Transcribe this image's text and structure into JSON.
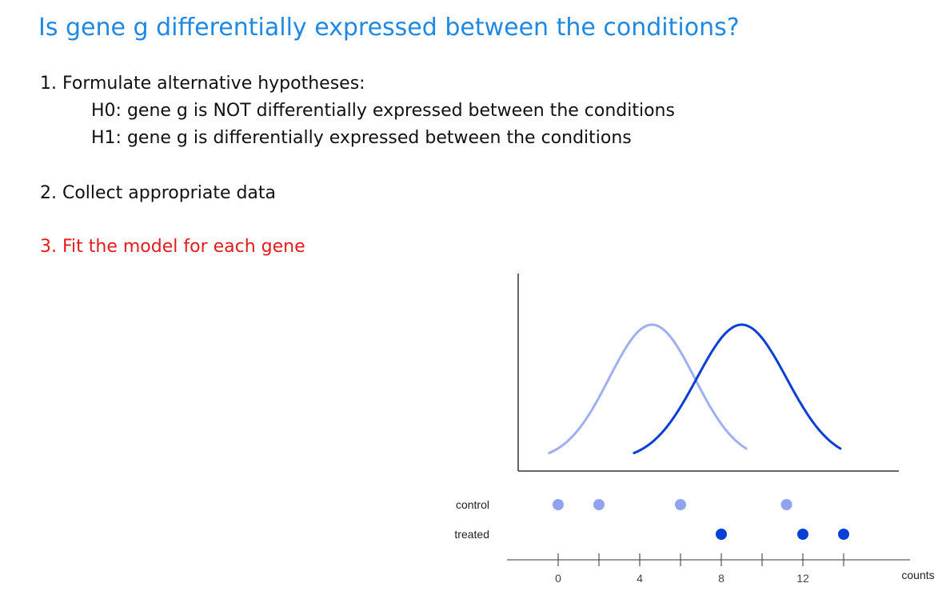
{
  "slide": {
    "title": "Is gene g differentially expressed between the conditions?",
    "step1": "1. Formulate alternative hypotheses:",
    "h0": "H0: gene g is NOT differentially expressed between the conditions",
    "h1": "H1: gene g is differentially expressed between the conditions",
    "step2": "2. Collect appropriate data",
    "step3": "3. Fit the model for each gene"
  },
  "chart_data": {
    "type": "scatter",
    "xlabel": "counts",
    "x_ticks": [
      0,
      4,
      8,
      12
    ],
    "series": [
      {
        "name": "control",
        "color": "#8fa3f0",
        "x": [
          0,
          2,
          6,
          11.2
        ]
      },
      {
        "name": "treated",
        "color": "#0a3fd6",
        "x": [
          8,
          12,
          14
        ]
      }
    ],
    "density_curves": [
      {
        "group": "control",
        "color": "#9fb0f2",
        "mean": 4.6,
        "sd": 2.1
      },
      {
        "group": "treated",
        "color": "#0a3fd6",
        "mean": 9.0,
        "sd": 2.2
      }
    ]
  }
}
